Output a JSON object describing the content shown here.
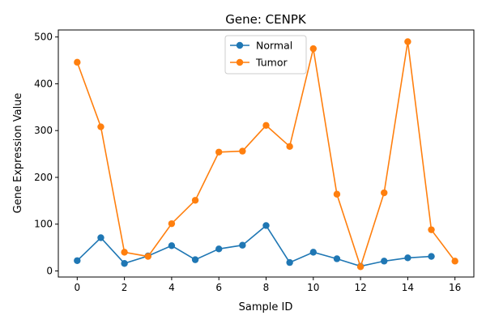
{
  "chart_data": {
    "type": "line",
    "title": "Gene: CENPK",
    "xlabel": "Sample ID",
    "ylabel": "Gene Expression Value",
    "xlim": [
      -0.8,
      16.8
    ],
    "ylim": [
      -13,
      515
    ],
    "xticks": [
      0,
      2,
      4,
      6,
      8,
      10,
      12,
      14,
      16
    ],
    "yticks": [
      0,
      100,
      200,
      300,
      400,
      500
    ],
    "grid": false,
    "legend_position": "top-center",
    "x": [
      0,
      1,
      2,
      3,
      4,
      5,
      6,
      7,
      8,
      9,
      10,
      11,
      12,
      13,
      14,
      15,
      16
    ],
    "series": [
      {
        "name": "Normal",
        "color": "#1f77b4",
        "values": [
          22,
          71,
          16,
          32,
          54,
          24,
          47,
          55,
          97,
          18,
          40,
          26,
          10,
          21,
          28,
          31,
          null
        ]
      },
      {
        "name": "Tumor",
        "color": "#ff7f0e",
        "values": [
          446,
          308,
          40,
          31,
          101,
          151,
          254,
          256,
          311,
          266,
          475,
          164,
          9,
          167,
          490,
          88,
          21
        ]
      }
    ]
  }
}
